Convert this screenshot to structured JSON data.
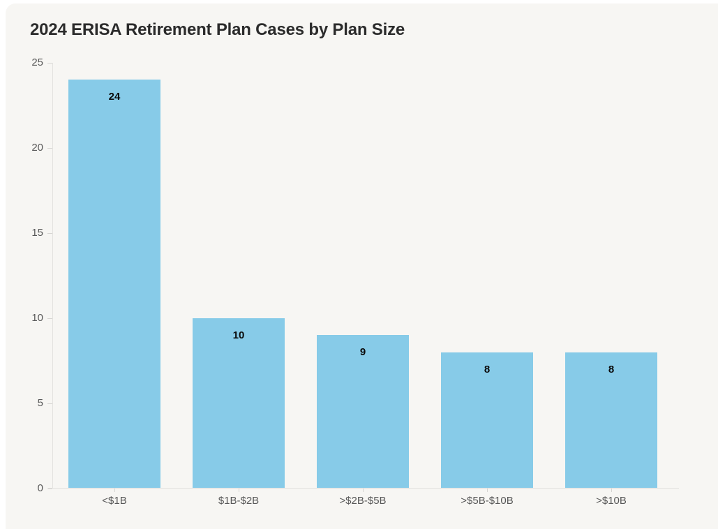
{
  "page": {
    "outer_background": "#ffffff",
    "canvas_background": "#f7f6f3"
  },
  "chart_data": {
    "type": "bar",
    "title": "2024 ERISA Retirement Plan Cases by Plan Size",
    "categories": [
      "<$1B",
      "$1B-$2B",
      ">$2B-$5B",
      ">$5B-$10B",
      ">$10B"
    ],
    "values": [
      24,
      10,
      9,
      8,
      8
    ],
    "bar_value_labels": [
      "24",
      "10",
      "9",
      "8",
      "8"
    ],
    "xlabel": "",
    "ylabel": "",
    "ylim": [
      0,
      25
    ],
    "yticks": [
      0,
      5,
      10,
      15,
      20,
      25
    ],
    "grid": false,
    "legend": "none",
    "colors": {
      "bar_fill": "#87CBE8",
      "value_label": "#0a0a0a",
      "tick_label": "#585858",
      "axis_line": "#e0dfdc",
      "title": "#2b2b2b"
    }
  }
}
